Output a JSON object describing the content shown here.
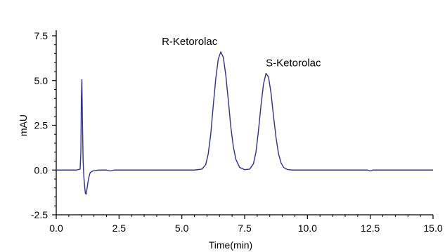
{
  "chart_data": {
    "type": "line",
    "title": "",
    "xlabel": "Time(min)",
    "ylabel": "mAU",
    "xlim": [
      0,
      15
    ],
    "ylim": [
      -2.5,
      7.5
    ],
    "x_ticks": [
      0.0,
      2.5,
      5.0,
      7.5,
      10.0,
      12.5,
      15.0
    ],
    "x_tick_labels": [
      "0.0",
      "2.5",
      "5.0",
      "7.5",
      "10.0",
      "12.5",
      "15.0"
    ],
    "y_ticks": [
      -2.5,
      0.0,
      2.5,
      5.0,
      7.5
    ],
    "y_tick_labels": [
      "-2.5",
      "0.0",
      "2.5",
      "5.0",
      "7.5"
    ],
    "grid": false,
    "line_color": "#2b2f9c",
    "series": [
      {
        "name": "",
        "x": [
          0.0,
          0.8,
          0.95,
          0.98,
          1.0,
          1.02,
          1.04,
          1.07,
          1.1,
          1.13,
          1.16,
          1.19,
          1.22,
          1.26,
          1.3,
          1.35,
          1.45,
          1.7,
          2.0,
          2.15,
          2.3,
          2.6,
          3.0,
          4.0,
          5.0,
          5.5,
          5.8,
          5.95,
          6.05,
          6.15,
          6.25,
          6.35,
          6.45,
          6.55,
          6.65,
          6.75,
          6.85,
          6.95,
          7.05,
          7.15,
          7.3,
          7.5,
          7.7,
          7.85,
          7.95,
          8.05,
          8.15,
          8.25,
          8.35,
          8.45,
          8.55,
          8.65,
          8.75,
          8.85,
          8.95,
          9.05,
          9.2,
          9.4,
          9.7,
          10.0,
          11.0,
          12.0,
          12.4,
          12.5,
          12.6,
          13.0,
          14.0,
          15.0
        ],
        "y": [
          0.0,
          0.0,
          0.05,
          1.0,
          4.0,
          5.05,
          3.0,
          0.5,
          -0.4,
          -0.9,
          -1.3,
          -1.35,
          -1.1,
          -0.7,
          -0.4,
          -0.15,
          -0.05,
          0.0,
          0.0,
          -0.05,
          0.0,
          0.0,
          0.0,
          0.0,
          0.0,
          0.0,
          0.05,
          0.3,
          0.9,
          2.0,
          3.6,
          5.1,
          6.2,
          6.6,
          6.3,
          5.3,
          3.9,
          2.4,
          1.3,
          0.6,
          0.15,
          0.02,
          0.05,
          0.35,
          1.0,
          2.2,
          3.6,
          4.8,
          5.4,
          5.2,
          4.3,
          3.0,
          1.8,
          0.9,
          0.4,
          0.15,
          0.03,
          0.0,
          0.0,
          0.0,
          0.0,
          0.0,
          0.0,
          -0.05,
          0.0,
          0.0,
          0.0,
          0.0
        ]
      }
    ],
    "annotations": [
      {
        "text": "R-Ketorolac",
        "x": 6.5,
        "y": 6.6
      },
      {
        "text": "S-Ketorolac",
        "x": 8.4,
        "y": 5.4
      }
    ]
  }
}
